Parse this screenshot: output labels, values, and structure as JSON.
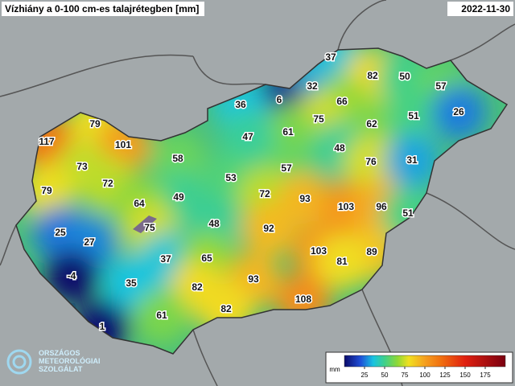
{
  "header": {
    "title": "Vízhiány a 0-100 cm-es talajrétegben [mm]",
    "date": "2022-11-30"
  },
  "stations": [
    37,
    82,
    50,
    57,
    32,
    6,
    36,
    66,
    75,
    62,
    51,
    26,
    79,
    117,
    101,
    61,
    47,
    48,
    58,
    76,
    31,
    73,
    57,
    53,
    72,
    79,
    49,
    72,
    93,
    103,
    96,
    64,
    48,
    75,
    51,
    25,
    92,
    27,
    103,
    89,
    37,
    65,
    81,
    -4,
    35,
    93,
    82,
    108,
    61,
    82,
    1
  ],
  "legend": {
    "unit": "mm",
    "ticks": [
      25,
      50,
      75,
      100,
      125,
      150,
      175
    ]
  },
  "logo": {
    "lines": [
      "ORSZÁGOS",
      "METEOROLÓGIAI",
      "SZOLGÁLAT"
    ]
  }
}
